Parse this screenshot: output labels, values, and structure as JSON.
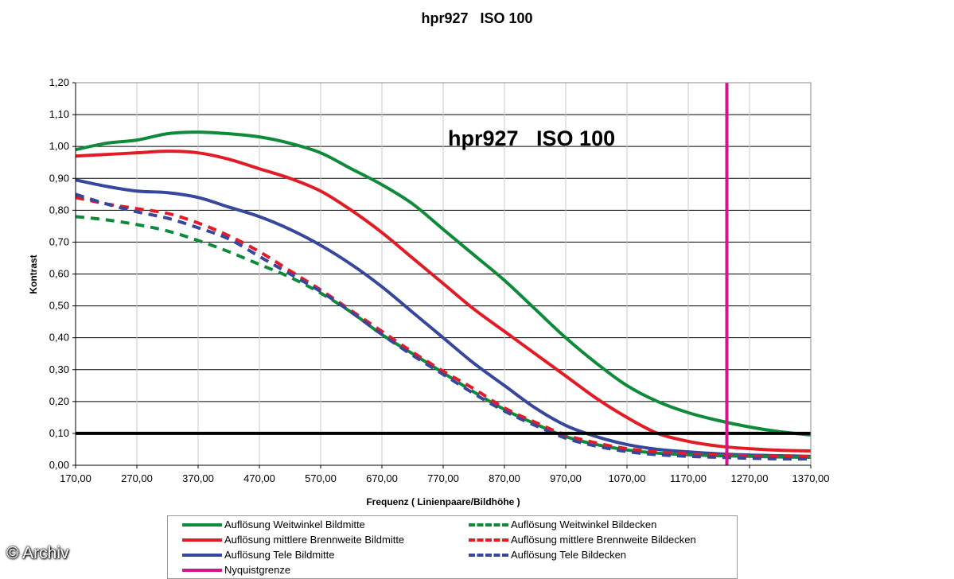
{
  "header": {
    "title": "hpr927   ISO 100"
  },
  "watermark": "© Archiv",
  "chart_data": {
    "type": "line",
    "title": "hpr927   ISO 100",
    "inner_title": "hpr927   ISO 100",
    "xlabel": "Frequenz ( Linienpaare/Bildhöhe )",
    "ylabel": "Kontrast",
    "xlim": [
      170,
      1370
    ],
    "ylim": [
      0,
      1.2
    ],
    "x_ticks": [
      "170,00",
      "270,00",
      "370,00",
      "470,00",
      "570,00",
      "670,00",
      "770,00",
      "870,00",
      "970,00",
      "1070,00",
      "1170,00",
      "1270,00",
      "1370,00"
    ],
    "y_ticks": [
      "0,00",
      "0,10",
      "0,20",
      "0,30",
      "0,40",
      "0,50",
      "0,60",
      "0,70",
      "0,80",
      "0,90",
      "1,00",
      "1,10",
      "1,20"
    ],
    "grid": true,
    "legend_position": "bottom",
    "reference_line": {
      "y": 0.1,
      "color": "#000000"
    },
    "nyquist": {
      "x": 1233,
      "label": "Nyquistgrenze",
      "color": "#d4148c"
    },
    "series": [
      {
        "name": "Auflösung Weitwinkel Bildmitte",
        "color": "#0f8a3a",
        "dashed": false,
        "x": [
          170,
          220,
          270,
          320,
          370,
          420,
          470,
          520,
          570,
          620,
          670,
          720,
          770,
          820,
          870,
          920,
          970,
          1020,
          1070,
          1120,
          1170,
          1220,
          1270,
          1320,
          1370
        ],
        "y": [
          0.99,
          1.01,
          1.02,
          1.04,
          1.045,
          1.04,
          1.03,
          1.01,
          0.98,
          0.93,
          0.88,
          0.82,
          0.74,
          0.66,
          0.58,
          0.49,
          0.4,
          0.32,
          0.25,
          0.2,
          0.165,
          0.14,
          0.12,
          0.105,
          0.095
        ]
      },
      {
        "name": "Auflösung mittlere Brennweite Bildmitte",
        "color": "#e21c26",
        "dashed": false,
        "x": [
          170,
          220,
          270,
          320,
          370,
          420,
          470,
          520,
          570,
          620,
          670,
          720,
          770,
          820,
          870,
          920,
          970,
          1020,
          1070,
          1120,
          1170,
          1220,
          1270,
          1320,
          1370
        ],
        "y": [
          0.97,
          0.975,
          0.98,
          0.985,
          0.98,
          0.96,
          0.93,
          0.9,
          0.86,
          0.8,
          0.73,
          0.65,
          0.57,
          0.49,
          0.42,
          0.35,
          0.28,
          0.21,
          0.15,
          0.1,
          0.075,
          0.06,
          0.052,
          0.047,
          0.045
        ]
      },
      {
        "name": "Auflösung Tele Bildmitte",
        "color": "#37479c",
        "dashed": false,
        "x": [
          170,
          220,
          270,
          320,
          370,
          420,
          470,
          520,
          570,
          620,
          670,
          720,
          770,
          820,
          870,
          920,
          970,
          1020,
          1070,
          1120,
          1170,
          1220,
          1270,
          1320,
          1370
        ],
        "y": [
          0.895,
          0.875,
          0.86,
          0.855,
          0.84,
          0.81,
          0.78,
          0.74,
          0.69,
          0.63,
          0.56,
          0.48,
          0.4,
          0.32,
          0.25,
          0.18,
          0.125,
          0.09,
          0.065,
          0.05,
          0.042,
          0.036,
          0.032,
          0.03,
          0.028
        ]
      },
      {
        "name": "Auflösung Weitwinkel Bildecken",
        "color": "#0f8a3a",
        "dashed": true,
        "x": [
          170,
          220,
          270,
          320,
          370,
          420,
          470,
          520,
          570,
          620,
          670,
          720,
          770,
          820,
          870,
          920,
          970,
          1020,
          1070,
          1120,
          1170,
          1220,
          1270,
          1320,
          1370
        ],
        "y": [
          0.78,
          0.77,
          0.755,
          0.735,
          0.705,
          0.67,
          0.63,
          0.59,
          0.54,
          0.48,
          0.41,
          0.35,
          0.29,
          0.23,
          0.175,
          0.13,
          0.09,
          0.065,
          0.048,
          0.038,
          0.033,
          0.03,
          0.028,
          0.026,
          0.025
        ]
      },
      {
        "name": "Auflösung mittlere Brennweite Bildecken",
        "color": "#e21c26",
        "dashed": true,
        "x": [
          170,
          220,
          270,
          320,
          370,
          420,
          470,
          520,
          570,
          620,
          670,
          720,
          770,
          820,
          870,
          920,
          970,
          1020,
          1070,
          1120,
          1170,
          1220,
          1270,
          1320,
          1370
        ],
        "y": [
          0.84,
          0.82,
          0.805,
          0.79,
          0.76,
          0.72,
          0.67,
          0.61,
          0.55,
          0.485,
          0.42,
          0.355,
          0.295,
          0.24,
          0.18,
          0.135,
          0.095,
          0.07,
          0.052,
          0.042,
          0.036,
          0.032,
          0.03,
          0.028,
          0.027
        ]
      },
      {
        "name": "Auflösung Tele Bildecken",
        "color": "#37479c",
        "dashed": true,
        "x": [
          170,
          220,
          270,
          320,
          370,
          420,
          470,
          520,
          570,
          620,
          670,
          720,
          770,
          820,
          870,
          920,
          970,
          1020,
          1070,
          1120,
          1170,
          1220,
          1270,
          1320,
          1370
        ],
        "y": [
          0.85,
          0.82,
          0.795,
          0.775,
          0.745,
          0.71,
          0.655,
          0.6,
          0.545,
          0.48,
          0.41,
          0.345,
          0.285,
          0.225,
          0.17,
          0.125,
          0.085,
          0.06,
          0.043,
          0.033,
          0.028,
          0.025,
          0.022,
          0.02,
          0.02
        ]
      }
    ],
    "legend": [
      {
        "label": "Auflösung Weitwinkel Bildmitte",
        "color": "#0f8a3a",
        "dashed": false
      },
      {
        "label": "Auflösung Weitwinkel Bildecken",
        "color": "#0f8a3a",
        "dashed": true
      },
      {
        "label": "Auflösung mittlere Brennweite Bildmitte",
        "color": "#e21c26",
        "dashed": false
      },
      {
        "label": "Auflösung mittlere Brennweite Bildecken",
        "color": "#e21c26",
        "dashed": true
      },
      {
        "label": "Auflösung Tele Bildmitte",
        "color": "#37479c",
        "dashed": false
      },
      {
        "label": "Auflösung Tele Bildecken",
        "color": "#37479c",
        "dashed": true
      },
      {
        "label": "Nyquistgrenze",
        "color": "#d4148c",
        "dashed": false
      }
    ]
  }
}
